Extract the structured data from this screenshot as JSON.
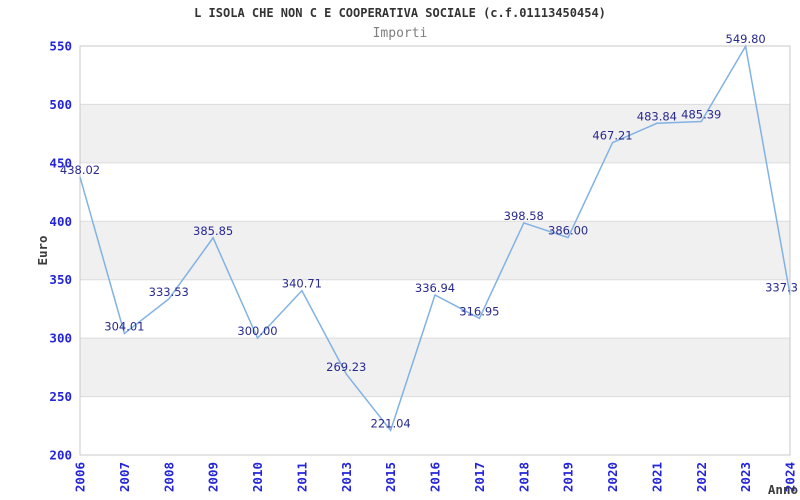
{
  "chart_data": {
    "type": "line",
    "title": "L ISOLA CHE NON C E COOPERATIVA SOCIALE (c.f.01113450454)",
    "subtitle": "Importi",
    "xlabel": "Anno",
    "ylabel": "Euro",
    "ylim": [
      200,
      550
    ],
    "ytick_step": 50,
    "grid": "horizontal-bands",
    "legend": "none",
    "categories": [
      "2006",
      "2007",
      "2008",
      "2009",
      "2010",
      "2011",
      "2013",
      "2015",
      "2016",
      "2017",
      "2018",
      "2019",
      "2020",
      "2021",
      "2022",
      "2023",
      "2024"
    ],
    "series": [
      {
        "name": "Importi",
        "values": [
          438.02,
          304.01,
          333.53,
          385.85,
          300.0,
          340.71,
          269.23,
          221.04,
          336.94,
          316.95,
          398.58,
          386.0,
          467.21,
          483.84,
          485.39,
          549.8,
          337.3
        ]
      }
    ],
    "point_labels": [
      "438.02",
      "304.01",
      "333.53",
      "385.85",
      "300.00",
      "340.71",
      "269.23",
      "221.04",
      "336.94",
      "316.95",
      "398.58",
      "386.00",
      "467.21",
      "483.84",
      "485.39",
      "549.80",
      "337.3"
    ],
    "colors": {
      "line": "#82b2e4",
      "tick_label": "#2424d9",
      "point_label": "#29298f",
      "band": "#f0f0f0",
      "gridline": "#dcdcdc",
      "border": "#c9c9c9",
      "title": "#333333",
      "subtitle": "#7f7f7f",
      "axis_title": "#3d3d3d",
      "background": "#ffffff"
    }
  }
}
